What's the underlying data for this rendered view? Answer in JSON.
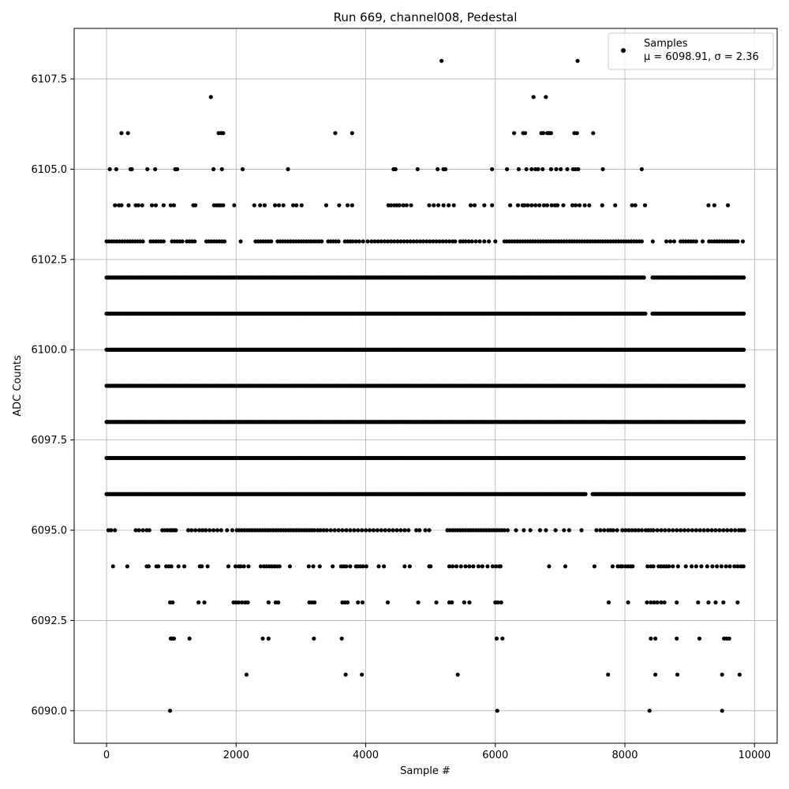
{
  "chart_data": {
    "type": "scatter",
    "title": "Run 669, channel008, Pedestal",
    "xlabel": "Sample #",
    "ylabel": "ADC Counts",
    "xlim": [
      -500,
      10350
    ],
    "ylim": [
      6089.1,
      6108.9
    ],
    "xticks": [
      0,
      2000,
      4000,
      6000,
      8000,
      10000
    ],
    "xtick_labels": [
      "0",
      "2000",
      "4000",
      "6000",
      "8000",
      "10000"
    ],
    "yticks": [
      6090.0,
      6092.5,
      6095.0,
      6097.5,
      6100.0,
      6102.5,
      6105.0,
      6107.5
    ],
    "ytick_labels": [
      "6090.0",
      "6092.5",
      "6095.0",
      "6097.5",
      "6100.0",
      "6102.5",
      "6105.0",
      "6107.5"
    ],
    "grid": true,
    "marker_color": "#000000",
    "legend": {
      "placement": "upper-right",
      "entries": [
        "Samples",
        "μ = 6098.91, σ = 2.36"
      ]
    },
    "series": [
      {
        "name": "Samples",
        "x_range": [
          0,
          9850
        ],
        "note_levels": "points lie on integer ADC levels",
        "points": [
          {
            "y": 6108,
            "x": [
              5170,
              7270
            ]
          },
          {
            "y": 6107,
            "x": [
              1610,
              6590,
              6780
            ]
          },
          {
            "y": 6106,
            "x": [
              230,
              330,
              1730,
              1770,
              1800,
              3530,
              3790,
              6290,
              6430,
              6460,
              6710,
              6740,
              6800,
              6830,
              6860,
              7220,
              7260,
              7510
            ]
          },
          {
            "y": 6105,
            "x": [
              50,
              150,
              370,
              390,
              630,
              750,
              1060,
              1090,
              1650,
              1780,
              2100,
              2800,
              4430,
              4460,
              4800,
              5110,
              5200,
              5230,
              5950,
              6180,
              6360,
              6480,
              6560,
              6620,
              6660,
              6730,
              6860,
              6940,
              7010,
              7110,
              7200,
              7240,
              7280,
              7660,
              8260
            ]
          },
          {
            "y": 6104,
            "x": [
              130,
              190,
              230,
              340,
              450,
              490,
              550,
              700,
              760,
              880,
              990,
              1040,
              1340,
              1370,
              1660,
              1700,
              1730,
              1760,
              1800,
              1970,
              2280,
              2370,
              2440,
              2600,
              2660,
              2730,
              2880,
              2930,
              3010,
              3390,
              3590,
              3720,
              3790,
              4350,
              4390,
              4440,
              4480,
              4520,
              4580,
              4630,
              4700,
              4980,
              5050,
              5120,
              5200,
              5280,
              5360,
              5620,
              5680,
              5830,
              5950,
              6230,
              6350,
              6420,
              6450,
              6500,
              6560,
              6620,
              6680,
              6750,
              6800,
              6870,
              6920,
              6960,
              7050,
              7190,
              7240,
              7300,
              7380,
              7450,
              7650,
              7850,
              8110,
              8160,
              8310,
              9290,
              9380,
              9590
            ]
          },
          {
            "y": 6103,
            "x": [
              0,
              40,
              80,
              120,
              160,
              200,
              240,
              280,
              320,
              360,
              400,
              440,
              480,
              520,
              560,
              680,
              720,
              760,
              800,
              840,
              880,
              1010,
              1050,
              1090,
              1130,
              1170,
              1240,
              1280,
              1320,
              1360,
              1540,
              1580,
              1620,
              1660,
              1700,
              1740,
              1780,
              1820,
              2070,
              2300,
              2340,
              2380,
              2420,
              2460,
              2500,
              2540,
              2640,
              2680,
              2720,
              2760,
              2800,
              2840,
              2880,
              2920,
              2960,
              3000,
              3040,
              3080,
              3120,
              3160,
              3200,
              3240,
              3280,
              3320,
              3420,
              3460,
              3500,
              3540,
              3580,
              3680,
              3720,
              3760,
              3800,
              3850,
              3900,
              3960,
              4030,
              4090,
              4140,
              4190,
              4240,
              4290,
              4340,
              4390,
              4440,
              4490,
              4540,
              4590,
              4640,
              4690,
              4740,
              4790,
              4840,
              4890,
              4940,
              4990,
              5040,
              5090,
              5140,
              5190,
              5240,
              5290,
              5340,
              5380,
              5460,
              5500,
              5540,
              5590,
              5640,
              5700,
              5760,
              5830,
              5900,
              6000,
              6140,
              6180,
              6220,
              6260,
              6300,
              6340,
              6380,
              6420,
              6460,
              6500,
              6540,
              6580,
              6620,
              6660,
              6700,
              6740,
              6780,
              6820,
              6860,
              6900,
              6940,
              6980,
              7020,
              7060,
              7100,
              7140,
              7180,
              7220,
              7260,
              7300,
              7340,
              7380,
              7420,
              7460,
              7500,
              7540,
              7580,
              7620,
              7660,
              7700,
              7740,
              7780,
              7820,
              7860,
              7900,
              7940,
              7980,
              8020,
              8060,
              8100,
              8140,
              8180,
              8220,
              8260,
              8430,
              8640,
              8700,
              8760,
              8860,
              8900,
              8940,
              8980,
              9020,
              9060,
              9100,
              9200,
              9300,
              9340,
              9380,
              9420,
              9460,
              9500,
              9540,
              9580,
              9620,
              9660,
              9700,
              9740,
              9820
            ]
          },
          {
            "y": 6102,
            "densePlateau": true,
            "gaps": [
              [
                8300,
                8420
              ]
            ]
          },
          {
            "y": 6101,
            "densePlateau": true,
            "gaps": [
              [
                8320,
                8420
              ]
            ]
          },
          {
            "y": 6100,
            "densePlateau": true,
            "gaps": []
          },
          {
            "y": 6099,
            "densePlateau": true,
            "gaps": []
          },
          {
            "y": 6098,
            "densePlateau": true,
            "gaps": []
          },
          {
            "y": 6097,
            "densePlateau": true,
            "gaps": []
          },
          {
            "y": 6096,
            "densePlateau": true,
            "gaps": [
              [
                7400,
                7500
              ]
            ]
          },
          {
            "y": 6095,
            "x": [
              30,
              70,
              130,
              450,
              500,
              560,
              620,
              660,
              860,
              900,
              940,
              980,
              1010,
              1040,
              1070,
              1260,
              1310,
              1370,
              1430,
              1480,
              1530,
              1590,
              1650,
              1710,
              1770,
              1860,
              1940,
              2010,
              2050,
              2090,
              2130,
              2170,
              2210,
              2250,
              2290,
              2330,
              2370,
              2410,
              2450,
              2490,
              2530,
              2570,
              2610,
              2650,
              2690,
              2730,
              2770,
              2810,
              2850,
              2890,
              2930,
              2970,
              3010,
              3050,
              3090,
              3130,
              3170,
              3210,
              3260,
              3300,
              3350,
              3400,
              3460,
              3520,
              3580,
              3640,
              3700,
              3760,
              3820,
              3880,
              3940,
              4000,
              4060,
              4120,
              4180,
              4240,
              4300,
              4360,
              4420,
              4480,
              4540,
              4600,
              4660,
              4780,
              4830,
              4920,
              4980,
              5260,
              5300,
              5340,
              5380,
              5420,
              5460,
              5500,
              5540,
              5580,
              5620,
              5660,
              5700,
              5740,
              5780,
              5820,
              5860,
              5900,
              5940,
              5980,
              6020,
              6060,
              6100,
              6140,
              6190,
              6320,
              6440,
              6540,
              6690,
              6780,
              6930,
              7060,
              7140,
              7330,
              7560,
              7620,
              7680,
              7740,
              7780,
              7820,
              7880,
              7960,
              8010,
              8060,
              8110,
              8160,
              8210,
              8260,
              8320,
              8360,
              8400,
              8440,
              8500,
              8560,
              8620,
              8680,
              8740,
              8800,
              8860,
              8920,
              8980,
              9040,
              9100,
              9160,
              9220,
              9280,
              9340,
              9400,
              9460,
              9520,
              9580,
              9640,
              9700,
              9760,
              9800,
              9840
            ]
          },
          {
            "y": 6094,
            "x": [
              100,
              320,
              620,
              650,
              770,
              800,
              920,
              960,
              1000,
              1110,
              1200,
              1440,
              1470,
              1560,
              1880,
              1990,
              2040,
              2070,
              2120,
              2190,
              2380,
              2430,
              2470,
              2510,
              2550,
              2590,
              2630,
              2670,
              2830,
              3120,
              3190,
              3290,
              3490,
              3620,
              3660,
              3700,
              3760,
              3850,
              3880,
              3920,
              3960,
              4010,
              4200,
              4280,
              4600,
              4680,
              4980,
              5000,
              5290,
              5340,
              5400,
              5470,
              5540,
              5600,
              5660,
              5740,
              5800,
              5880,
              5960,
              6010,
              6060,
              6080,
              6830,
              7080,
              7530,
              7810,
              7890,
              7930,
              7960,
              8010,
              8050,
              8090,
              8120,
              8350,
              8400,
              8440,
              8520,
              8560,
              8600,
              8640,
              8680,
              8740,
              8820,
              8940,
              9030,
              9100,
              9180,
              9270,
              9350,
              9420,
              9490,
              9560,
              9620,
              9690,
              9740,
              9790,
              9830
            ]
          },
          {
            "y": 6093,
            "x": [
              980,
              1020,
              1420,
              1510,
              1960,
              2000,
              2040,
              2090,
              2140,
              2180,
              2500,
              2610,
              2650,
              3130,
              3170,
              3210,
              3640,
              3680,
              3720,
              3880,
              3950,
              4340,
              4810,
              5090,
              5290,
              5330,
              5520,
              5600,
              6000,
              6040,
              6090,
              7750,
              8050,
              8340,
              8400,
              8450,
              8500,
              8560,
              8610,
              8800,
              9130,
              9290,
              9400,
              9520,
              9740
            ]
          },
          {
            "y": 6092,
            "x": [
              990,
              1010,
              1040,
              1280,
              2410,
              2500,
              3200,
              3630,
              6020,
              6110,
              8400,
              8470,
              8800,
              9150,
              9530,
              9570,
              9610
            ]
          },
          {
            "y": 6091,
            "x": [
              2160,
              3690,
              3940,
              5420,
              7740,
              8470,
              8810,
              9500,
              9770
            ]
          },
          {
            "y": 6090,
            "x": [
              980,
              6030,
              8380,
              9500
            ]
          }
        ]
      }
    ]
  }
}
